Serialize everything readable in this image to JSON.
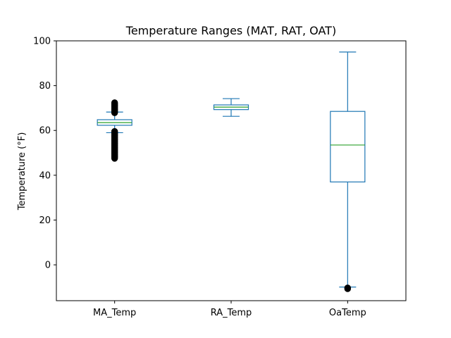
{
  "chart_data": {
    "type": "box",
    "title": "Temperature Ranges (MAT, RAT, OAT)",
    "xlabel": "",
    "ylabel": "Temperature (°F)",
    "ylim": [
      -16,
      100
    ],
    "yticks": [
      0,
      20,
      40,
      60,
      80,
      100
    ],
    "grid": false,
    "legend": "none",
    "colors": {
      "box": "#1f77b4",
      "median": "#2ca02c",
      "outlier": "#000000"
    },
    "categories": [
      "MA_Temp",
      "RA_Temp",
      "OaTemp"
    ],
    "boxes": [
      {
        "name": "MA_Temp",
        "whisker_low": 59.0,
        "q1": 62.3,
        "median": 63.5,
        "q3": 64.8,
        "whisker_high": 68.2,
        "outliers_low_range": [
          47.2,
          59.6
        ],
        "outliers_high_range": [
          67.6,
          72.4
        ]
      },
      {
        "name": "RA_Temp",
        "whisker_low": 66.3,
        "q1": 69.3,
        "median": 70.4,
        "q3": 71.4,
        "whisker_high": 74.2,
        "outliers_low_range": null,
        "outliers_high_range": null
      },
      {
        "name": "OaTemp",
        "whisker_low": -9.9,
        "q1": 37.0,
        "median": 53.5,
        "q3": 68.5,
        "whisker_high": 95.0,
        "outliers_low_range": [
          -11.0,
          -10.3
        ],
        "outliers_high_range": null
      }
    ]
  }
}
